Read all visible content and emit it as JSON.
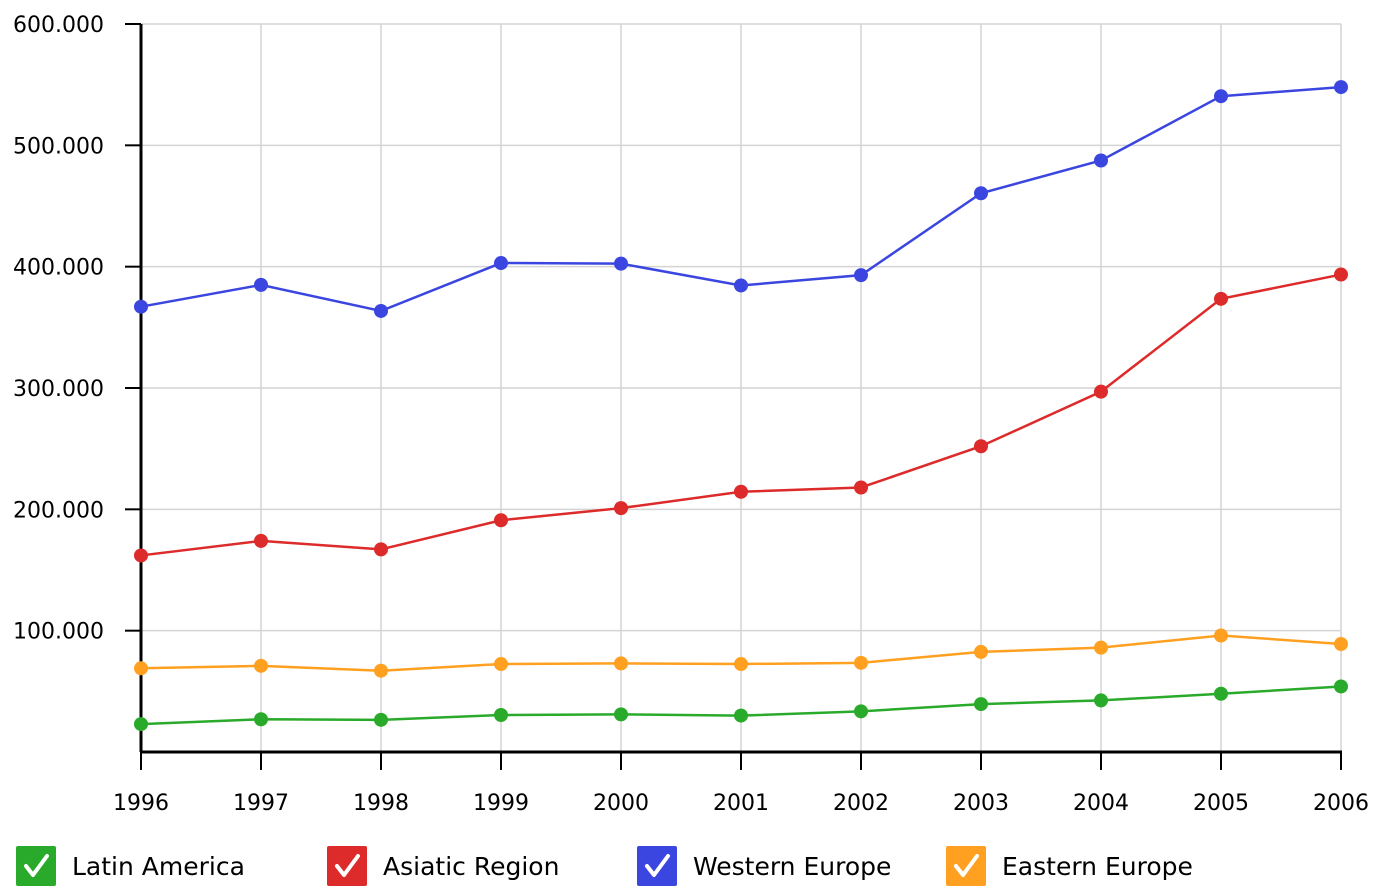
{
  "chart_data": {
    "type": "line",
    "x": [
      "1996",
      "1997",
      "1998",
      "1999",
      "2000",
      "2001",
      "2002",
      "2003",
      "2004",
      "2005",
      "2006"
    ],
    "ylim": [
      0,
      600000
    ],
    "yticks": [
      100000,
      200000,
      300000,
      400000,
      500000,
      600000
    ],
    "ytick_labels": [
      "100.000",
      "200.000",
      "300.000",
      "400.000",
      "500.000",
      "600.000"
    ],
    "grid": true,
    "legend_position": "bottom",
    "series": [
      {
        "name": "Latin America",
        "color": "#2aaa2a",
        "values": [
          23000,
          27000,
          26500,
          30500,
          31000,
          30000,
          33500,
          39500,
          42500,
          48000,
          54000
        ]
      },
      {
        "name": "Asiatic Region",
        "color": "#dd2a2a",
        "values": [
          162000,
          174000,
          167000,
          191000,
          201000,
          214500,
          218000,
          252000,
          297000,
          373500,
          393500
        ]
      },
      {
        "name": "Western Europe",
        "color": "#3b46e0",
        "values": [
          367000,
          385000,
          363500,
          403000,
          402500,
          384500,
          393000,
          460500,
          487500,
          540500,
          548000
        ]
      },
      {
        "name": "Eastern Europe",
        "color": "#ffa020",
        "values": [
          69000,
          71000,
          67000,
          72500,
          73000,
          72500,
          73500,
          82500,
          86000,
          96000,
          89000
        ]
      }
    ]
  }
}
